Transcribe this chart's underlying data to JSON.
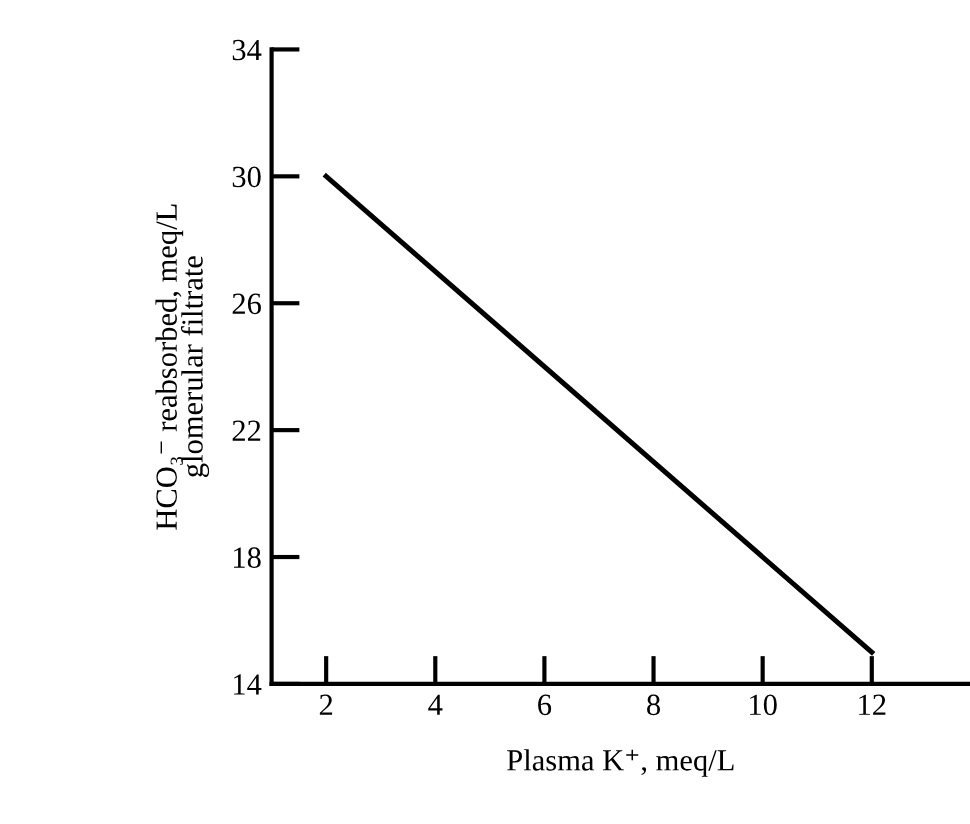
{
  "chart_data": {
    "type": "line",
    "xlabel": "Plasma K⁺, meq/L",
    "ylabel": "HCO₃⁻ reabsorbed, meq/L\nglomerular filtrate",
    "x": [
      2,
      12
    ],
    "series": [
      {
        "color": "#000000",
        "values": [
          30,
          15
        ]
      }
    ],
    "xlim": [
      1,
      13.8
    ],
    "xticks": [
      2,
      4,
      6,
      8,
      10,
      12
    ],
    "ylim": [
      14,
      34
    ],
    "yticks": [
      14,
      18,
      22,
      26,
      30,
      34
    ],
    "grid": false,
    "legend": false,
    "marker": "none",
    "line_style": "solid"
  }
}
